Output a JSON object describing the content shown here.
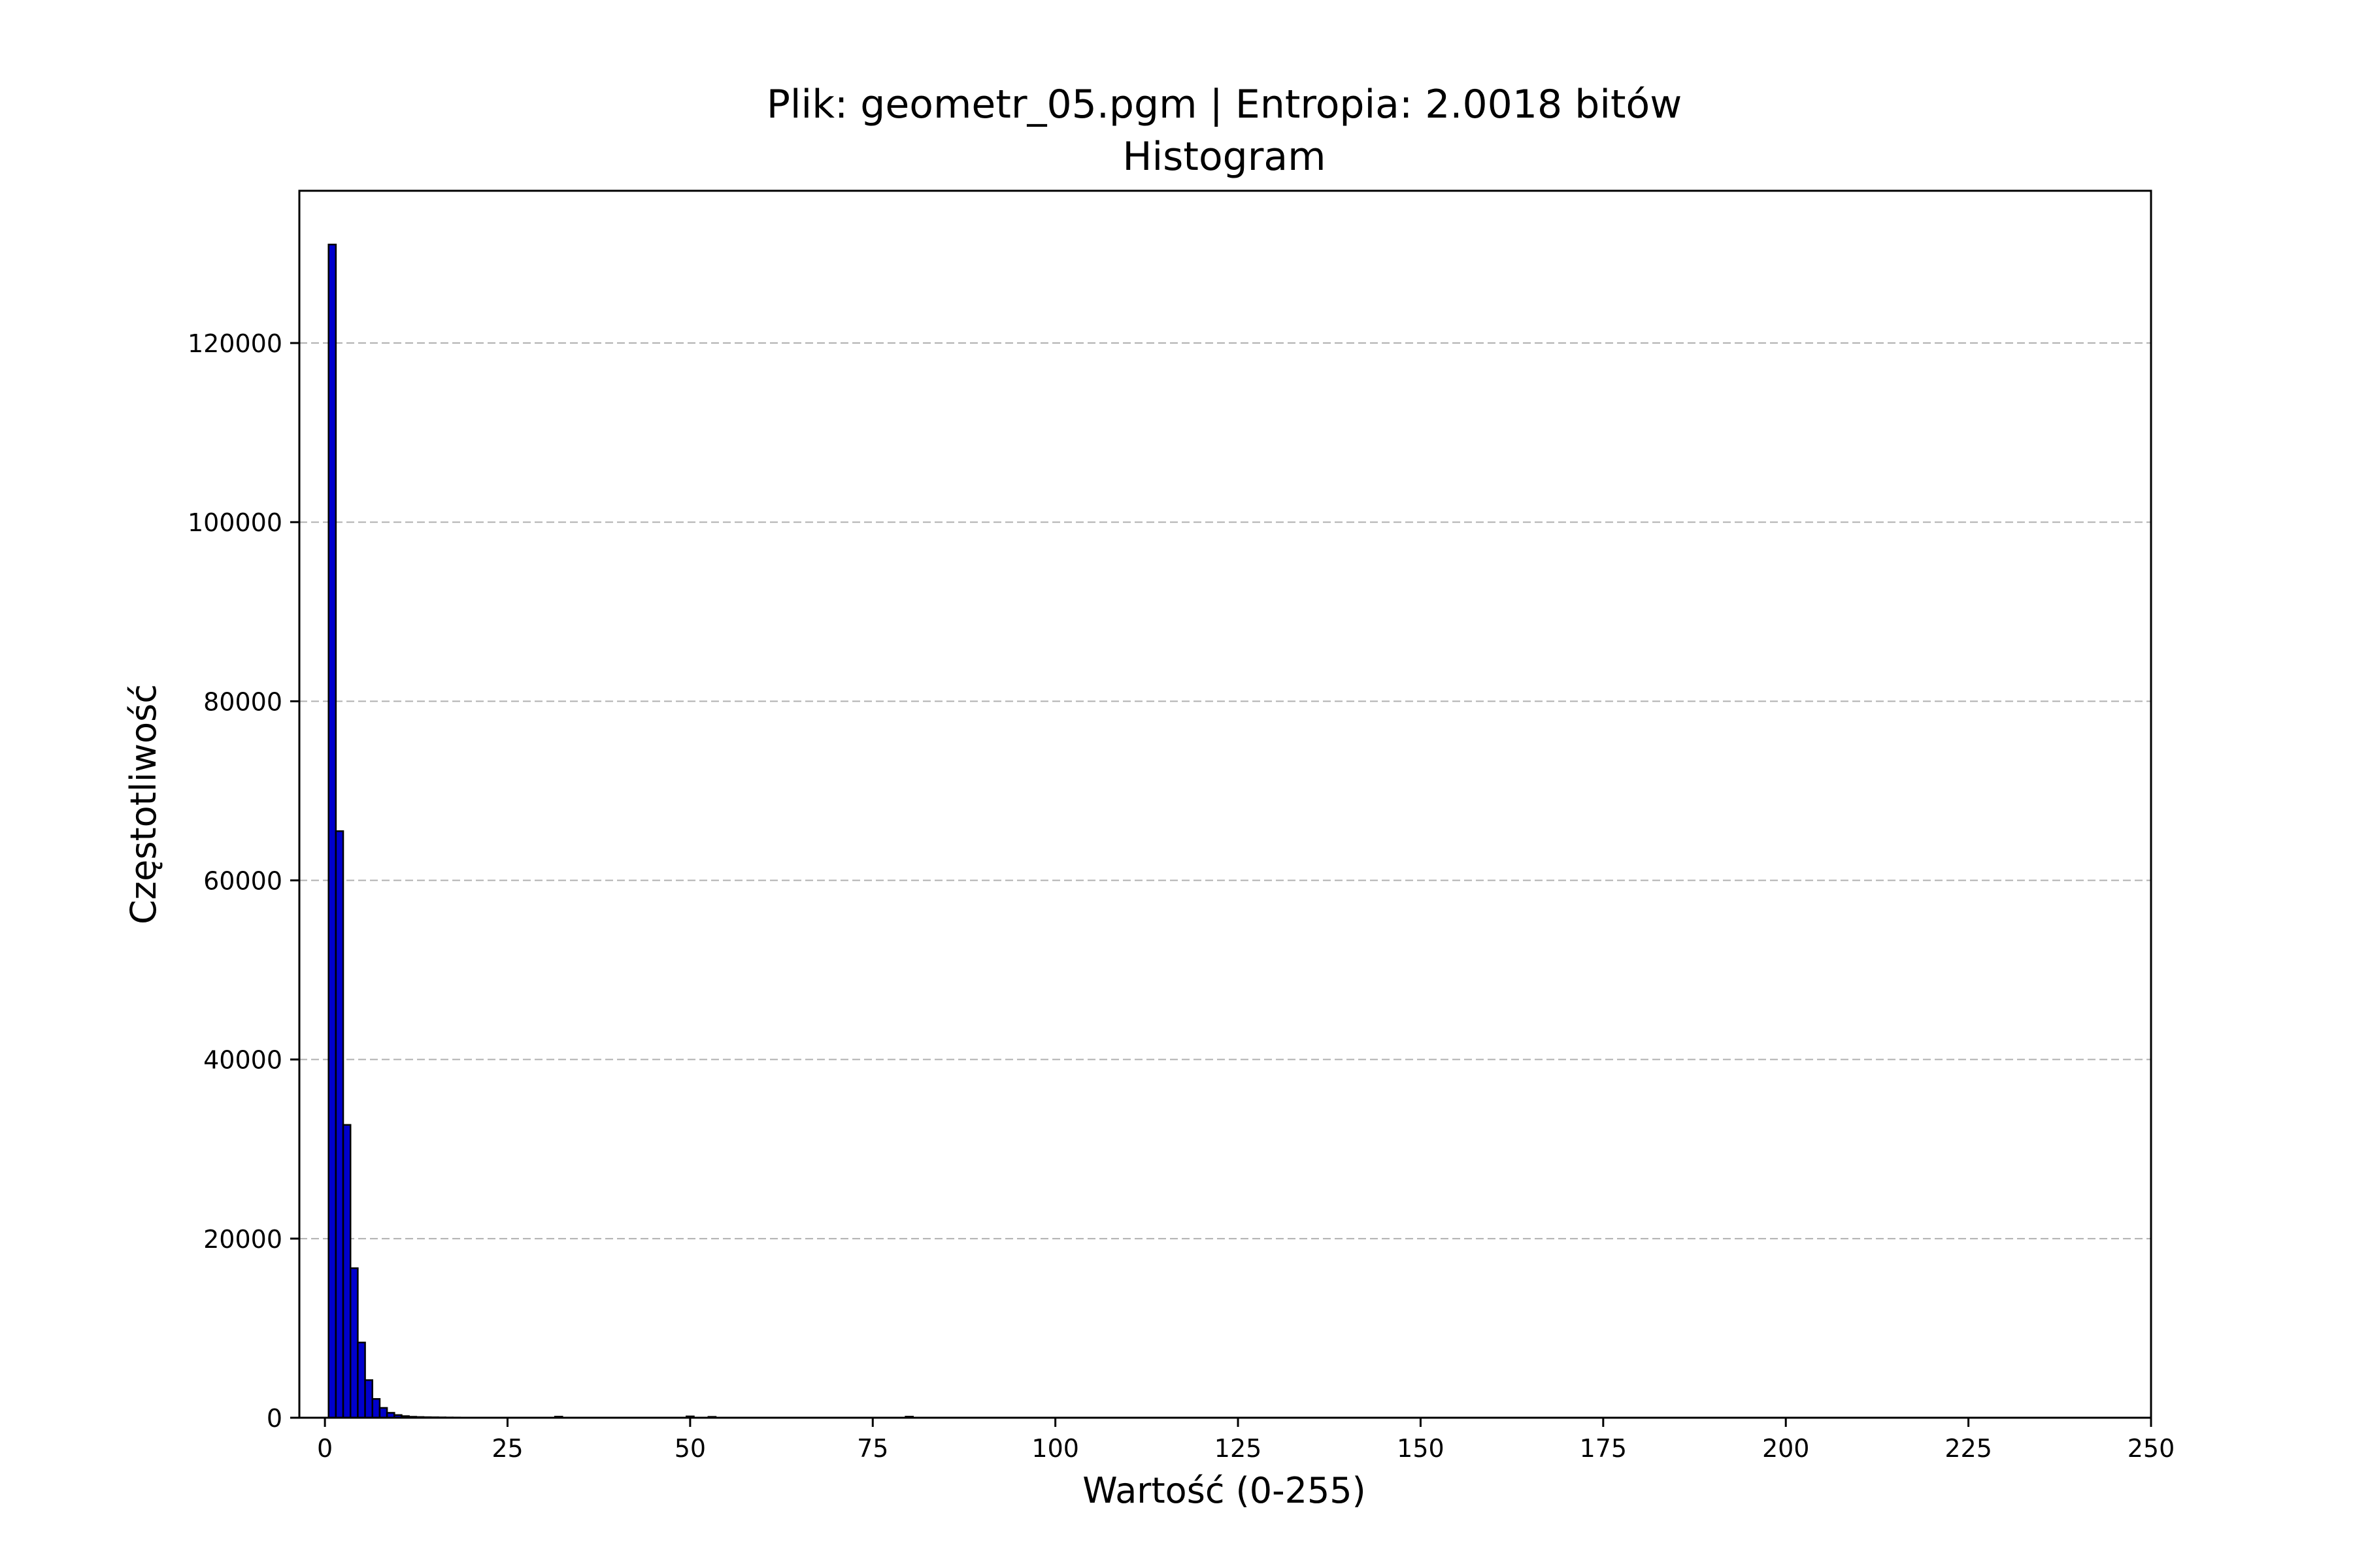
{
  "chart_data": {
    "type": "bar",
    "title": "Plik: geometr_05.pgm | Entropia: 2.0018 bitów",
    "subtitle": "Histogram",
    "xlabel": "Wartość (0-255)",
    "ylabel": "Częstotliwość",
    "xlim": [
      -3.5,
      250
    ],
    "ylim": [
      0,
      137000
    ],
    "x_ticks": [
      "0",
      "25",
      "50",
      "75",
      "100",
      "125",
      "150",
      "175",
      "200",
      "225",
      "250"
    ],
    "y_ticks": [
      "0",
      "20000",
      "40000",
      "60000",
      "80000",
      "100000",
      "120000"
    ],
    "grid": "y-dashed",
    "bar_color": "#0000cc",
    "edge_color": "#000000",
    "bins": [
      1,
      2,
      3,
      4,
      5,
      6,
      7,
      8,
      9,
      10,
      11,
      12,
      13,
      14,
      15,
      16,
      17,
      18,
      32,
      50,
      53,
      80
    ],
    "values": [
      131000,
      65500,
      32700,
      16700,
      8400,
      4200,
      2100,
      1100,
      550,
      300,
      180,
      110,
      80,
      60,
      50,
      40,
      30,
      25,
      120,
      150,
      100,
      120
    ]
  }
}
